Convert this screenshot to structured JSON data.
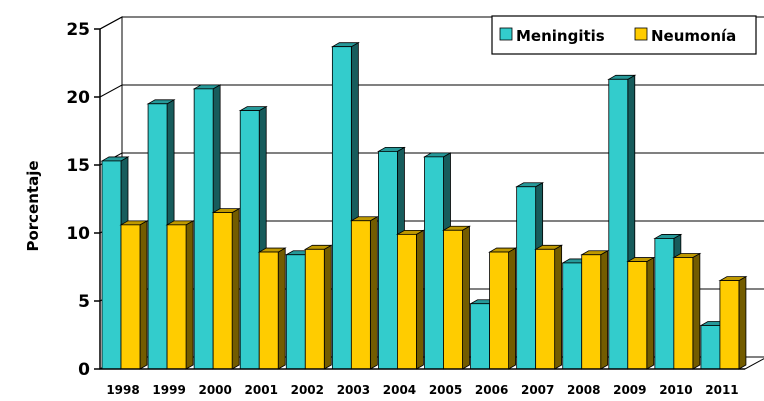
{
  "chart_data": {
    "type": "bar",
    "title": "",
    "xlabel": "",
    "ylabel": "Porcentaje",
    "ylim": [
      0,
      25
    ],
    "yticks": [
      0,
      5,
      10,
      15,
      20,
      25
    ],
    "grid": true,
    "legend_position": "top-right",
    "categories": [
      "1998",
      "1999",
      "2000",
      "2001",
      "2002",
      "2003",
      "2004",
      "2005",
      "2006",
      "2007",
      "2008",
      "2009",
      "2010",
      "2011"
    ],
    "series": [
      {
        "name": "Meningitis",
        "color": "#33CCCC",
        "values": [
          15.3,
          19.5,
          20.6,
          19.0,
          8.4,
          23.7,
          16.0,
          15.6,
          4.8,
          13.4,
          7.8,
          21.3,
          9.6,
          3.2
        ]
      },
      {
        "name": "Neumonía",
        "color": "#FFCC00",
        "values": [
          10.6,
          10.6,
          11.5,
          8.6,
          8.8,
          10.9,
          9.9,
          10.2,
          8.6,
          8.8,
          8.4,
          7.9,
          8.2,
          6.5
        ]
      }
    ]
  }
}
